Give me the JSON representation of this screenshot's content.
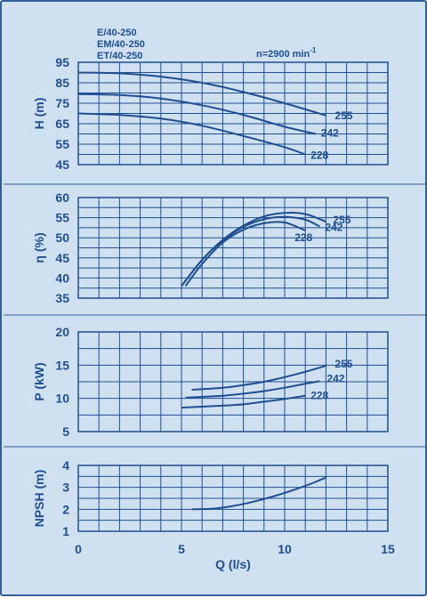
{
  "header": {
    "models": [
      "E/40-250",
      "EM/40-250",
      "ET/40-250"
    ],
    "speed_label": "n=2900 min",
    "speed_exp": "-1"
  },
  "chart_data": [
    {
      "type": "line",
      "ylabel": "H (m)",
      "ylim": [
        45,
        95
      ],
      "yticks": [
        45,
        55,
        65,
        75,
        85,
        95
      ],
      "xlim": [
        0,
        15
      ],
      "grid": true,
      "series": [
        {
          "name": "255",
          "x": [
            0,
            2,
            4,
            6,
            8,
            10,
            12
          ],
          "y": [
            90,
            89.6,
            88,
            85,
            80.5,
            75,
            69
          ]
        },
        {
          "name": "242",
          "x": [
            0,
            2,
            4,
            6,
            8,
            10,
            11.5
          ],
          "y": [
            79.5,
            79,
            77.3,
            74,
            69.3,
            63.5,
            60
          ]
        },
        {
          "name": "228",
          "x": [
            0,
            2,
            4,
            6,
            8,
            10,
            11
          ],
          "y": [
            70,
            69.3,
            67.5,
            64,
            59,
            53.5,
            50
          ]
        }
      ]
    },
    {
      "type": "line",
      "ylabel": "η (%)",
      "ylim": [
        35,
        60
      ],
      "yticks": [
        35,
        40,
        45,
        50,
        55,
        60
      ],
      "xlim": [
        0,
        15
      ],
      "grid": true,
      "series": [
        {
          "name": "255",
          "x": [
            5,
            6,
            7,
            8,
            9,
            10,
            11,
            12
          ],
          "y": [
            38,
            44.5,
            49.5,
            53,
            55.3,
            56.2,
            55.9,
            54
          ]
        },
        {
          "name": "242",
          "x": [
            5,
            6,
            7,
            8,
            9,
            10,
            11,
            11.7
          ],
          "y": [
            38,
            44.5,
            49.3,
            52.7,
            54.6,
            55.2,
            54.5,
            52.8
          ]
        },
        {
          "name": "228",
          "x": [
            5.2,
            6,
            7,
            8,
            9,
            10,
            11
          ],
          "y": [
            38,
            43.5,
            48.8,
            52,
            53.6,
            53.8,
            51.8
          ]
        }
      ]
    },
    {
      "type": "line",
      "ylabel": "P (kW)",
      "ylim": [
        5,
        20
      ],
      "yticks": [
        5,
        10,
        15,
        20
      ],
      "xlim": [
        0,
        15
      ],
      "grid": true,
      "series": [
        {
          "name": "255",
          "x": [
            5.5,
            7,
            8,
            9,
            10,
            11,
            12
          ],
          "y": [
            11.3,
            11.6,
            12,
            12.5,
            13.2,
            14,
            14.9
          ]
        },
        {
          "name": "242",
          "x": [
            5.2,
            7,
            8,
            9,
            10,
            11,
            11.7
          ],
          "y": [
            10.1,
            10.4,
            10.7,
            11.1,
            11.6,
            12.2,
            12.6
          ]
        },
        {
          "name": "228",
          "x": [
            5,
            7,
            8,
            9,
            10,
            11
          ],
          "y": [
            8.6,
            8.9,
            9.1,
            9.5,
            9.9,
            10.4
          ]
        }
      ]
    },
    {
      "type": "line",
      "ylabel": "NPSH (m)",
      "ylim": [
        1,
        4
      ],
      "yticks": [
        1,
        2,
        3,
        4
      ],
      "xlim": [
        0,
        15
      ],
      "xticks": [
        0,
        5,
        10,
        15
      ],
      "xlabel": "Q (l/s)",
      "grid": true,
      "series": [
        {
          "x": [
            5.5,
            6.5,
            7.5,
            8.5,
            9.5,
            10.5,
            11.5,
            12
          ],
          "y": [
            2,
            2.03,
            2.15,
            2.35,
            2.6,
            2.9,
            3.25,
            3.45
          ]
        }
      ]
    }
  ]
}
